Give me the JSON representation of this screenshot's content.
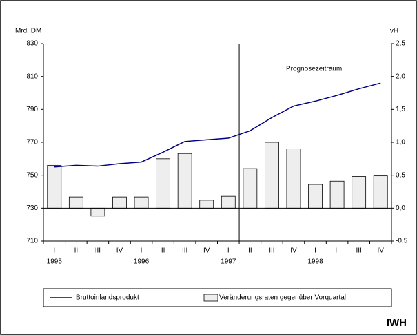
{
  "chart_data": {
    "type": "line-bar",
    "ylabel": "Mrd. DM",
    "y2label": "vH",
    "brand": "IWH",
    "categories": [
      "I",
      "II",
      "III",
      "IV",
      "I",
      "II",
      "III",
      "IV",
      "I",
      "II",
      "III",
      "IV",
      "I",
      "II",
      "III",
      "IV"
    ],
    "groups": [
      "1995",
      "1996",
      "1997",
      "1998"
    ],
    "series": [
      {
        "name": "Bruttoinlandsprodukt",
        "kind": "line",
        "color": "#000080",
        "values": [
          755,
          756,
          755.5,
          757,
          758,
          764,
          770.5,
          771.5,
          772.5,
          777,
          785,
          792,
          795,
          798.5,
          802.5,
          806
        ]
      },
      {
        "name": "Veränderungsraten gegenüber Vorquartal",
        "kind": "bar",
        "axis": "y2",
        "color": "#eeeeee",
        "values": [
          0.65,
          0.17,
          -0.12,
          0.17,
          0.17,
          0.75,
          0.83,
          0.12,
          0.18,
          0.6,
          1.0,
          0.9,
          0.36,
          0.41,
          0.48,
          0.49
        ]
      }
    ],
    "ylim": [
      710,
      830
    ],
    "yticks": [
      710,
      730,
      750,
      770,
      790,
      810,
      830
    ],
    "y2lim": [
      -0.5,
      2.5
    ],
    "y2ticks": [
      {
        "value": -0.5,
        "label": "-0,5"
      },
      {
        "value": 0,
        "label": "0,0"
      },
      {
        "value": 0.5,
        "label": "0,5"
      },
      {
        "value": 1,
        "label": "1,0"
      },
      {
        "value": 1.5,
        "label": "1,5"
      },
      {
        "value": 2,
        "label": "2,0"
      },
      {
        "value": 2.5,
        "label": "2,5"
      }
    ],
    "forecast": {
      "label": "Prognosezeitraum",
      "start": 9
    }
  }
}
